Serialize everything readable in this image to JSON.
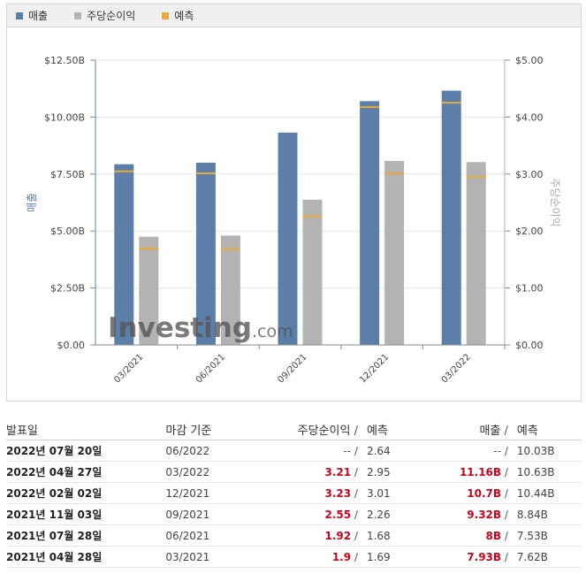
{
  "legend": {
    "revenue": "매출",
    "eps": "주당순이익",
    "forecast": "예측"
  },
  "colors": {
    "revenue": "#5b7fa9",
    "eps": "#b3b3b3",
    "forecast": "#e9a93b",
    "positive": "#d0021b"
  },
  "watermark": "Investing.com",
  "chart_data": {
    "type": "bar",
    "categories": [
      "03/2021",
      "06/2021",
      "09/2021",
      "12/2021",
      "03/2022"
    ],
    "series": [
      {
        "name": "매출",
        "axis": "left",
        "values": [
          7.93,
          8.0,
          9.32,
          10.7,
          11.16
        ],
        "forecast": [
          7.62,
          7.53,
          null,
          10.44,
          10.63
        ]
      },
      {
        "name": "주당순이익",
        "axis": "right",
        "values": [
          1.9,
          1.92,
          2.55,
          3.23,
          3.21
        ],
        "forecast": [
          1.69,
          1.68,
          2.26,
          3.01,
          2.95
        ]
      }
    ],
    "ylabel_left": "매출",
    "ylabel_right": "주당순이익",
    "ylim_left": [
      0,
      12.5
    ],
    "ylim_right": [
      0,
      5
    ],
    "yticks_left": [
      "$0.00",
      "$2.50B",
      "$5.00B",
      "$7.50B",
      "$10.00B",
      "$12.50B"
    ],
    "yticks_right": [
      "$0.00",
      "$1.00",
      "$2.00",
      "$3.00",
      "$4.00",
      "$5.00"
    ]
  },
  "table": {
    "headers": {
      "date": "발표일",
      "period": "마감 기준",
      "eps": "주당순이익",
      "eps_forecast": "예측",
      "revenue": "매출",
      "revenue_forecast": "예측",
      "sep": "/"
    },
    "rows": [
      {
        "date": "2022년 07월 20일",
        "period": "06/2022",
        "eps": "--",
        "eps_forecast": "2.64",
        "revenue": "--",
        "revenue_forecast": "10.03B",
        "highlight": false
      },
      {
        "date": "2022년 04월 27일",
        "period": "03/2022",
        "eps": "3.21",
        "eps_forecast": "2.95",
        "revenue": "11.16B",
        "revenue_forecast": "10.63B",
        "highlight": true
      },
      {
        "date": "2022년 02월 02일",
        "period": "12/2021",
        "eps": "3.23",
        "eps_forecast": "3.01",
        "revenue": "10.7B",
        "revenue_forecast": "10.44B",
        "highlight": true
      },
      {
        "date": "2021년 11월 03일",
        "period": "09/2021",
        "eps": "2.55",
        "eps_forecast": "2.26",
        "revenue": "9.32B",
        "revenue_forecast": "8.84B",
        "highlight": true
      },
      {
        "date": "2021년 07월 28일",
        "period": "06/2021",
        "eps": "1.92",
        "eps_forecast": "1.68",
        "revenue": "8B",
        "revenue_forecast": "7.53B",
        "highlight": true
      },
      {
        "date": "2021년 04월 28일",
        "period": "03/2021",
        "eps": "1.9",
        "eps_forecast": "1.69",
        "revenue": "7.93B",
        "revenue_forecast": "7.62B",
        "highlight": true
      }
    ]
  }
}
